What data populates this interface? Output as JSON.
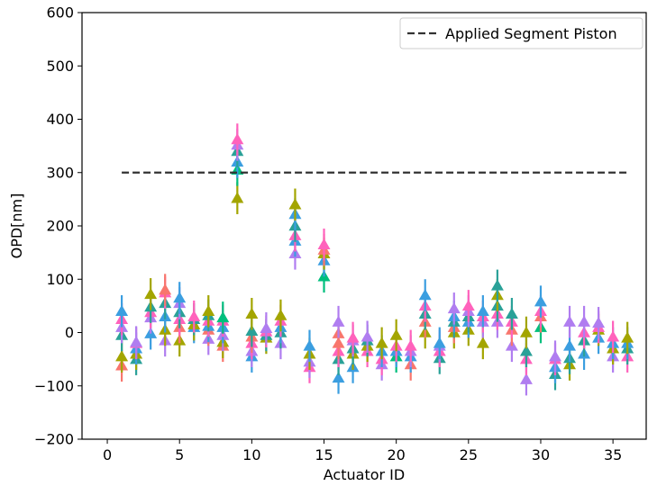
{
  "chart_data": {
    "type": "scatter",
    "title": "",
    "xlabel": "Actuator ID",
    "ylabel": "OPD[nm]",
    "xlim": [
      -1.75,
      37.3
    ],
    "ylim": [
      -200,
      600
    ],
    "xticks": [
      0,
      5,
      10,
      15,
      20,
      25,
      30,
      35
    ],
    "yticks": [
      -200,
      -100,
      0,
      100,
      200,
      300,
      400,
      500,
      600
    ],
    "grid": false,
    "legend": {
      "placement": "top-right",
      "entries": [
        "Applied Segment Piston"
      ]
    },
    "reference_line": {
      "name": "Applied Segment Piston",
      "y": 300,
      "x_start": 1,
      "x_end": 36,
      "style": "dashed",
      "color": "#333333"
    },
    "marker": "triangle-up",
    "error_bar_halfwidth": 30,
    "series_colors": [
      "#f8766d",
      "#a3a500",
      "#00bf7d",
      "#2aa198",
      "#3b9ee0",
      "#b07df0",
      "#ff62bc"
    ],
    "points": [
      {
        "x": 1,
        "y": -62,
        "color": "#f8766d"
      },
      {
        "x": 1,
        "y": -45,
        "color": "#a3a500"
      },
      {
        "x": 1,
        "y": -5,
        "color": "#2aa198"
      },
      {
        "x": 1,
        "y": 10,
        "color": "#b07df0"
      },
      {
        "x": 1,
        "y": 25,
        "color": "#ff62bc"
      },
      {
        "x": 1,
        "y": 40,
        "color": "#3b9ee0"
      },
      {
        "x": 2,
        "y": -50,
        "color": "#2aa198"
      },
      {
        "x": 2,
        "y": -40,
        "color": "#a3a500"
      },
      {
        "x": 2,
        "y": -30,
        "color": "#3b9ee0"
      },
      {
        "x": 2,
        "y": -20,
        "color": "#ff62bc"
      },
      {
        "x": 2,
        "y": -18,
        "color": "#b07df0"
      },
      {
        "x": 3,
        "y": -2,
        "color": "#3b9ee0"
      },
      {
        "x": 3,
        "y": 28,
        "color": "#b07df0"
      },
      {
        "x": 3,
        "y": 38,
        "color": "#ff62bc"
      },
      {
        "x": 3,
        "y": 48,
        "color": "#2aa198"
      },
      {
        "x": 3,
        "y": 72,
        "color": "#a3a500"
      },
      {
        "x": 4,
        "y": -15,
        "color": "#b07df0"
      },
      {
        "x": 4,
        "y": 5,
        "color": "#a3a500"
      },
      {
        "x": 4,
        "y": 30,
        "color": "#3b9ee0"
      },
      {
        "x": 4,
        "y": 55,
        "color": "#2aa198"
      },
      {
        "x": 4,
        "y": 75,
        "color": "#ff62bc"
      },
      {
        "x": 4,
        "y": 80,
        "color": "#f8766d"
      },
      {
        "x": 5,
        "y": -15,
        "color": "#a3a500"
      },
      {
        "x": 5,
        "y": 10,
        "color": "#f8766d"
      },
      {
        "x": 5,
        "y": 25,
        "color": "#ff62bc"
      },
      {
        "x": 5,
        "y": 38,
        "color": "#2aa198"
      },
      {
        "x": 5,
        "y": 55,
        "color": "#b07df0"
      },
      {
        "x": 5,
        "y": 65,
        "color": "#3b9ee0"
      },
      {
        "x": 6,
        "y": 10,
        "color": "#3b9ee0"
      },
      {
        "x": 6,
        "y": 15,
        "color": "#a3a500"
      },
      {
        "x": 6,
        "y": 25,
        "color": "#2aa198"
      },
      {
        "x": 6,
        "y": 30,
        "color": "#ff62bc"
      },
      {
        "x": 7,
        "y": -12,
        "color": "#b07df0"
      },
      {
        "x": 7,
        "y": 5,
        "color": "#f8766d"
      },
      {
        "x": 7,
        "y": 12,
        "color": "#3b9ee0"
      },
      {
        "x": 7,
        "y": 22,
        "color": "#ff62bc"
      },
      {
        "x": 7,
        "y": 32,
        "color": "#2aa198"
      },
      {
        "x": 7,
        "y": 40,
        "color": "#a3a500"
      },
      {
        "x": 8,
        "y": -25,
        "color": "#f8766d"
      },
      {
        "x": 8,
        "y": -18,
        "color": "#a3a500"
      },
      {
        "x": 8,
        "y": -5,
        "color": "#b07df0"
      },
      {
        "x": 8,
        "y": 10,
        "color": "#3b9ee0"
      },
      {
        "x": 8,
        "y": 22,
        "color": "#ff62bc"
      },
      {
        "x": 8,
        "y": 28,
        "color": "#00bf7d"
      },
      {
        "x": 9,
        "y": 252,
        "color": "#a3a500"
      },
      {
        "x": 9,
        "y": 305,
        "color": "#00bf7d"
      },
      {
        "x": 9,
        "y": 320,
        "color": "#3b9ee0"
      },
      {
        "x": 9,
        "y": 340,
        "color": "#2aa198"
      },
      {
        "x": 9,
        "y": 352,
        "color": "#b07df0"
      },
      {
        "x": 9,
        "y": 362,
        "color": "#ff62bc"
      },
      {
        "x": 10,
        "y": -45,
        "color": "#3b9ee0"
      },
      {
        "x": 10,
        "y": -35,
        "color": "#b07df0"
      },
      {
        "x": 10,
        "y": -20,
        "color": "#ff62bc"
      },
      {
        "x": 10,
        "y": -8,
        "color": "#f8766d"
      },
      {
        "x": 10,
        "y": 3,
        "color": "#2aa198"
      },
      {
        "x": 10,
        "y": 35,
        "color": "#a3a500"
      },
      {
        "x": 11,
        "y": -10,
        "color": "#a3a500"
      },
      {
        "x": 11,
        "y": -5,
        "color": "#2aa198"
      },
      {
        "x": 11,
        "y": 2,
        "color": "#ff62bc"
      },
      {
        "x": 11,
        "y": 8,
        "color": "#b07df0"
      },
      {
        "x": 12,
        "y": -20,
        "color": "#b07df0"
      },
      {
        "x": 12,
        "y": 0,
        "color": "#2aa198"
      },
      {
        "x": 12,
        "y": 10,
        "color": "#3b9ee0"
      },
      {
        "x": 12,
        "y": 22,
        "color": "#ff62bc"
      },
      {
        "x": 12,
        "y": 32,
        "color": "#a3a500"
      },
      {
        "x": 13,
        "y": 148,
        "color": "#b07df0"
      },
      {
        "x": 13,
        "y": 172,
        "color": "#3b9ee0"
      },
      {
        "x": 13,
        "y": 182,
        "color": "#ff62bc"
      },
      {
        "x": 13,
        "y": 200,
        "color": "#2aa198"
      },
      {
        "x": 13,
        "y": 222,
        "color": "#3b9ee0"
      },
      {
        "x": 13,
        "y": 240,
        "color": "#a3a500"
      },
      {
        "x": 14,
        "y": -65,
        "color": "#ff62bc"
      },
      {
        "x": 14,
        "y": -55,
        "color": "#b07df0"
      },
      {
        "x": 14,
        "y": -40,
        "color": "#a3a500"
      },
      {
        "x": 14,
        "y": -25,
        "color": "#3b9ee0"
      },
      {
        "x": 15,
        "y": 105,
        "color": "#00bf7d"
      },
      {
        "x": 15,
        "y": 135,
        "color": "#3b9ee0"
      },
      {
        "x": 15,
        "y": 148,
        "color": "#a3a500"
      },
      {
        "x": 15,
        "y": 155,
        "color": "#f8766d"
      },
      {
        "x": 15,
        "y": 165,
        "color": "#ff62bc"
      },
      {
        "x": 16,
        "y": -85,
        "color": "#3b9ee0"
      },
      {
        "x": 16,
        "y": -50,
        "color": "#2aa198"
      },
      {
        "x": 16,
        "y": -35,
        "color": "#ff62bc"
      },
      {
        "x": 16,
        "y": -20,
        "color": "#f8766d"
      },
      {
        "x": 16,
        "y": -2,
        "color": "#f8766d"
      },
      {
        "x": 16,
        "y": 20,
        "color": "#b07df0"
      },
      {
        "x": 17,
        "y": -65,
        "color": "#3b9ee0"
      },
      {
        "x": 17,
        "y": -40,
        "color": "#a3a500"
      },
      {
        "x": 17,
        "y": -30,
        "color": "#2aa198"
      },
      {
        "x": 17,
        "y": -15,
        "color": "#b07df0"
      },
      {
        "x": 17,
        "y": -10,
        "color": "#ff62bc"
      },
      {
        "x": 18,
        "y": -35,
        "color": "#ff62bc"
      },
      {
        "x": 18,
        "y": -25,
        "color": "#a3a500"
      },
      {
        "x": 18,
        "y": -15,
        "color": "#2aa198"
      },
      {
        "x": 18,
        "y": -8,
        "color": "#b07df0"
      },
      {
        "x": 19,
        "y": -60,
        "color": "#b07df0"
      },
      {
        "x": 19,
        "y": -50,
        "color": "#ff62bc"
      },
      {
        "x": 19,
        "y": -35,
        "color": "#3b9ee0"
      },
      {
        "x": 19,
        "y": -20,
        "color": "#a3a500"
      },
      {
        "x": 20,
        "y": -45,
        "color": "#00bf7d"
      },
      {
        "x": 20,
        "y": -35,
        "color": "#3b9ee0"
      },
      {
        "x": 20,
        "y": -25,
        "color": "#ff62bc"
      },
      {
        "x": 20,
        "y": -5,
        "color": "#a3a500"
      },
      {
        "x": 21,
        "y": -60,
        "color": "#f8766d"
      },
      {
        "x": 21,
        "y": -45,
        "color": "#3b9ee0"
      },
      {
        "x": 21,
        "y": -35,
        "color": "#b07df0"
      },
      {
        "x": 21,
        "y": -25,
        "color": "#ff62bc"
      },
      {
        "x": 22,
        "y": 0,
        "color": "#a3a500"
      },
      {
        "x": 22,
        "y": 20,
        "color": "#f8766d"
      },
      {
        "x": 22,
        "y": 35,
        "color": "#2aa198"
      },
      {
        "x": 22,
        "y": 50,
        "color": "#ff62bc"
      },
      {
        "x": 22,
        "y": 70,
        "color": "#3b9ee0"
      },
      {
        "x": 23,
        "y": -48,
        "color": "#2aa198"
      },
      {
        "x": 23,
        "y": -35,
        "color": "#ff62bc"
      },
      {
        "x": 23,
        "y": -25,
        "color": "#b07df0"
      },
      {
        "x": 23,
        "y": -20,
        "color": "#3b9ee0"
      },
      {
        "x": 24,
        "y": 0,
        "color": "#a3a500"
      },
      {
        "x": 24,
        "y": 10,
        "color": "#f8766d"
      },
      {
        "x": 24,
        "y": 20,
        "color": "#2aa198"
      },
      {
        "x": 24,
        "y": 30,
        "color": "#3b9ee0"
      },
      {
        "x": 24,
        "y": 45,
        "color": "#b07df0"
      },
      {
        "x": 25,
        "y": 5,
        "color": "#a3a500"
      },
      {
        "x": 25,
        "y": 20,
        "color": "#3b9ee0"
      },
      {
        "x": 25,
        "y": 30,
        "color": "#2aa198"
      },
      {
        "x": 25,
        "y": 40,
        "color": "#b07df0"
      },
      {
        "x": 25,
        "y": 50,
        "color": "#ff62bc"
      },
      {
        "x": 26,
        "y": -20,
        "color": "#a3a500"
      },
      {
        "x": 26,
        "y": 20,
        "color": "#b07df0"
      },
      {
        "x": 26,
        "y": 30,
        "color": "#ff62bc"
      },
      {
        "x": 26,
        "y": 40,
        "color": "#3b9ee0"
      },
      {
        "x": 27,
        "y": 20,
        "color": "#b07df0"
      },
      {
        "x": 27,
        "y": 35,
        "color": "#ff62bc"
      },
      {
        "x": 27,
        "y": 50,
        "color": "#2aa198"
      },
      {
        "x": 27,
        "y": 70,
        "color": "#a3a500"
      },
      {
        "x": 27,
        "y": 88,
        "color": "#2aa198"
      },
      {
        "x": 28,
        "y": -25,
        "color": "#b07df0"
      },
      {
        "x": 28,
        "y": 5,
        "color": "#f8766d"
      },
      {
        "x": 28,
        "y": 20,
        "color": "#ff62bc"
      },
      {
        "x": 28,
        "y": 35,
        "color": "#2aa198"
      },
      {
        "x": 29,
        "y": -88,
        "color": "#b07df0"
      },
      {
        "x": 29,
        "y": -50,
        "color": "#ff62bc"
      },
      {
        "x": 29,
        "y": -35,
        "color": "#2aa198"
      },
      {
        "x": 29,
        "y": 0,
        "color": "#a3a500"
      },
      {
        "x": 30,
        "y": 10,
        "color": "#00bf7d"
      },
      {
        "x": 30,
        "y": 30,
        "color": "#f8766d"
      },
      {
        "x": 30,
        "y": 40,
        "color": "#ff62bc"
      },
      {
        "x": 30,
        "y": 58,
        "color": "#3b9ee0"
      },
      {
        "x": 31,
        "y": -78,
        "color": "#2aa198"
      },
      {
        "x": 31,
        "y": -65,
        "color": "#3b9ee0"
      },
      {
        "x": 31,
        "y": -50,
        "color": "#ff62bc"
      },
      {
        "x": 31,
        "y": -45,
        "color": "#b07df0"
      },
      {
        "x": 32,
        "y": -60,
        "color": "#a3a500"
      },
      {
        "x": 32,
        "y": -48,
        "color": "#2aa198"
      },
      {
        "x": 32,
        "y": -25,
        "color": "#3b9ee0"
      },
      {
        "x": 32,
        "y": 20,
        "color": "#b07df0"
      },
      {
        "x": 33,
        "y": -40,
        "color": "#3b9ee0"
      },
      {
        "x": 33,
        "y": -15,
        "color": "#2aa198"
      },
      {
        "x": 33,
        "y": 0,
        "color": "#ff62bc"
      },
      {
        "x": 33,
        "y": 20,
        "color": "#b07df0"
      },
      {
        "x": 34,
        "y": -10,
        "color": "#3b9ee0"
      },
      {
        "x": 34,
        "y": 5,
        "color": "#a3a500"
      },
      {
        "x": 34,
        "y": 10,
        "color": "#ff62bc"
      },
      {
        "x": 34,
        "y": 18,
        "color": "#b07df0"
      },
      {
        "x": 35,
        "y": -45,
        "color": "#b07df0"
      },
      {
        "x": 35,
        "y": -30,
        "color": "#a3a500"
      },
      {
        "x": 35,
        "y": -20,
        "color": "#3b9ee0"
      },
      {
        "x": 35,
        "y": -8,
        "color": "#ff62bc"
      },
      {
        "x": 36,
        "y": -45,
        "color": "#ff62bc"
      },
      {
        "x": 36,
        "y": -30,
        "color": "#2aa198"
      },
      {
        "x": 36,
        "y": -20,
        "color": "#3b9ee0"
      },
      {
        "x": 36,
        "y": -10,
        "color": "#a3a500"
      }
    ]
  }
}
